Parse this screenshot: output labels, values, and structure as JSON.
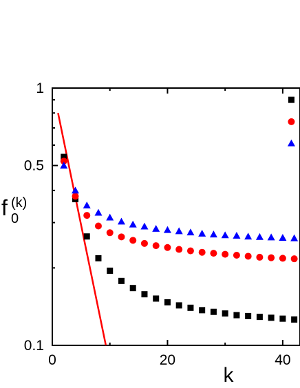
{
  "chart_data": {
    "type": "scatter",
    "xlabel": "k",
    "ylabel_main": "f",
    "ylabel_sub": "0",
    "ylabel_sup": "(k)",
    "xlim": [
      0,
      43
    ],
    "ylim": [
      0.1,
      1
    ],
    "yscale": "log",
    "xticks": [
      0,
      20,
      40
    ],
    "xtick_labels": [
      "0",
      "20",
      "40"
    ],
    "yticks": [
      0.1,
      0.5,
      1
    ],
    "ytick_labels": [
      "0.1",
      "0.5",
      "1"
    ],
    "grid": false,
    "legend": "none",
    "series": [
      {
        "marker": "square",
        "color": "#000000",
        "points": [
          [
            2,
            0.54
          ],
          [
            4,
            0.37
          ],
          [
            6,
            0.265
          ],
          [
            8,
            0.218
          ],
          [
            10,
            0.195
          ],
          [
            12,
            0.178
          ],
          [
            14,
            0.167
          ],
          [
            16,
            0.158
          ],
          [
            18,
            0.152
          ],
          [
            20,
            0.147
          ],
          [
            22,
            0.143
          ],
          [
            24,
            0.14
          ],
          [
            26,
            0.137
          ],
          [
            28,
            0.135
          ],
          [
            30,
            0.133
          ],
          [
            32,
            0.131
          ],
          [
            34,
            0.13
          ],
          [
            36,
            0.129
          ],
          [
            38,
            0.128
          ],
          [
            40,
            0.127
          ],
          [
            42,
            0.126
          ],
          [
            41.5,
            0.9
          ]
        ]
      },
      {
        "marker": "circle",
        "color": "#ff0000",
        "points": [
          [
            2,
            0.52
          ],
          [
            4,
            0.38
          ],
          [
            6,
            0.32
          ],
          [
            8,
            0.291
          ],
          [
            10,
            0.274
          ],
          [
            12,
            0.264
          ],
          [
            14,
            0.256
          ],
          [
            16,
            0.249
          ],
          [
            18,
            0.244
          ],
          [
            20,
            0.24
          ],
          [
            22,
            0.236
          ],
          [
            24,
            0.233
          ],
          [
            26,
            0.23
          ],
          [
            28,
            0.228
          ],
          [
            30,
            0.226
          ],
          [
            32,
            0.224
          ],
          [
            34,
            0.222
          ],
          [
            36,
            0.22
          ],
          [
            38,
            0.219
          ],
          [
            40,
            0.218
          ],
          [
            42,
            0.217
          ],
          [
            41.5,
            0.74
          ]
        ]
      },
      {
        "marker": "triangle",
        "color": "#0000ff",
        "points": [
          [
            2,
            0.5
          ],
          [
            4,
            0.4
          ],
          [
            6,
            0.35
          ],
          [
            8,
            0.328
          ],
          [
            10,
            0.314
          ],
          [
            12,
            0.303
          ],
          [
            14,
            0.295
          ],
          [
            16,
            0.29
          ],
          [
            18,
            0.284
          ],
          [
            20,
            0.281
          ],
          [
            22,
            0.278
          ],
          [
            24,
            0.275
          ],
          [
            26,
            0.272
          ],
          [
            28,
            0.27
          ],
          [
            30,
            0.268
          ],
          [
            32,
            0.267
          ],
          [
            34,
            0.265
          ],
          [
            36,
            0.264
          ],
          [
            38,
            0.263
          ],
          [
            40,
            0.262
          ],
          [
            42,
            0.261
          ],
          [
            41.5,
            0.61
          ]
        ]
      }
    ],
    "line": {
      "color": "#ff0000",
      "points": [
        [
          1,
          0.8
        ],
        [
          9.3,
          0.1
        ]
      ]
    }
  }
}
